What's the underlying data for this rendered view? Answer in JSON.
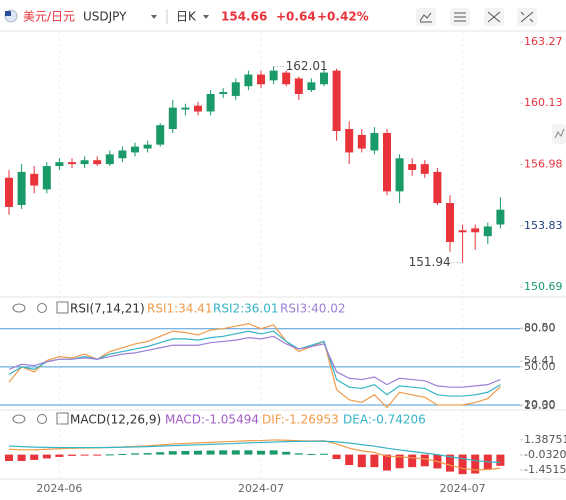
{
  "header": {
    "pair": "美元/日元",
    "symbol": "USDJPY",
    "period": "日K",
    "price": "154.66",
    "change": "+0.64",
    "change_pct": "+0.42%"
  },
  "chart_data": [
    {
      "type": "candlestick",
      "categories": [
        null,
        null,
        null,
        null,
        "2024-06",
        null,
        null,
        null,
        null,
        null,
        null,
        null,
        null,
        null,
        null,
        null,
        null,
        null,
        null,
        null,
        "2024-07",
        null,
        null,
        null,
        null,
        null,
        null,
        null,
        null,
        null,
        null,
        null,
        null,
        null,
        null,
        null,
        "2024-07",
        null,
        null,
        null
      ],
      "open": [
        156.3,
        154.9,
        156.5,
        155.7,
        156.9,
        157.1,
        157.0,
        157.2,
        157.0,
        157.3,
        157.6,
        157.8,
        158.0,
        158.8,
        159.8,
        160.0,
        159.7,
        160.6,
        160.5,
        161.0,
        161.6,
        161.3,
        161.7,
        161.4,
        160.8,
        161.1,
        161.8,
        158.8,
        158.5,
        157.7,
        158.6,
        155.6,
        157.0,
        157.0,
        156.6,
        155.0,
        153.6,
        153.7,
        153.3,
        153.9
      ],
      "high": [
        156.7,
        157.0,
        156.9,
        157.1,
        157.3,
        157.3,
        157.4,
        157.4,
        157.7,
        157.9,
        158.1,
        158.2,
        159.1,
        160.3,
        160.1,
        160.2,
        160.8,
        160.9,
        161.4,
        161.8,
        161.8,
        162.01,
        161.8,
        161.5,
        161.4,
        161.9,
        161.9,
        159.2,
        158.8,
        158.9,
        158.8,
        157.5,
        157.3,
        157.2,
        156.8,
        155.4,
        153.9,
        153.9,
        154.0,
        155.3
      ],
      "low": [
        154.4,
        154.7,
        155.5,
        155.5,
        156.7,
        156.8,
        156.8,
        156.9,
        156.9,
        157.1,
        157.4,
        157.6,
        157.9,
        158.6,
        159.5,
        159.5,
        159.5,
        160.4,
        160.3,
        160.8,
        160.9,
        161.1,
        161.0,
        160.3,
        160.7,
        161.0,
        158.2,
        157.0,
        157.6,
        157.5,
        155.4,
        155.0,
        156.4,
        156.3,
        154.9,
        152.5,
        151.94,
        152.6,
        152.9,
        153.7
      ],
      "close": [
        154.8,
        156.6,
        155.9,
        156.9,
        157.1,
        157.0,
        157.2,
        157.0,
        157.5,
        157.7,
        157.9,
        158.0,
        159.0,
        159.9,
        159.9,
        159.7,
        160.6,
        160.7,
        161.2,
        161.6,
        161.1,
        161.8,
        161.1,
        160.6,
        161.2,
        161.7,
        158.7,
        157.6,
        157.8,
        158.6,
        155.6,
        157.3,
        156.7,
        156.5,
        155.0,
        153.0,
        153.5,
        153.5,
        153.8,
        154.66
      ],
      "up_color": "#1a9a68",
      "down_color": "#e8333b",
      "ylim": [
        150.69,
        163.27
      ],
      "yticks": [
        163.27,
        160.13,
        156.98,
        153.83,
        150.69
      ],
      "ytick_colors": [
        "#e8333b",
        "#e8333b",
        "#e8333b",
        "#23407a",
        "#1a9a68"
      ],
      "annotations": [
        162.01,
        151.94
      ]
    },
    {
      "type": "line",
      "title": "RSI(7,14,21)",
      "series": [
        {
          "name": "RSI1:34.41",
          "color": "#f09a4a",
          "values": [
            38,
            50,
            46,
            55,
            58,
            57,
            60,
            56,
            62,
            65,
            68,
            70,
            74,
            78,
            77,
            75,
            79,
            80,
            82,
            84,
            80,
            83,
            70,
            62,
            66,
            70,
            32,
            24,
            22,
            28,
            18,
            30,
            28,
            26,
            20,
            20,
            20,
            22,
            25,
            34.41
          ]
        },
        {
          "name": "RSI2:36.01",
          "color": "#35b4c6",
          "values": [
            44,
            50,
            48,
            54,
            56,
            56,
            58,
            56,
            60,
            62,
            64,
            66,
            69,
            72,
            72,
            71,
            73,
            74,
            76,
            78,
            76,
            78,
            70,
            64,
            67,
            70,
            40,
            34,
            33,
            36,
            28,
            35,
            34,
            33,
            28,
            27,
            27,
            28,
            30,
            36.01
          ]
        },
        {
          "name": "RSI3:40.02",
          "color": "#9d7fd6",
          "values": [
            48,
            52,
            51,
            54,
            56,
            56,
            57,
            56,
            58,
            60,
            61,
            63,
            65,
            67,
            67,
            67,
            69,
            70,
            71,
            73,
            72,
            74,
            68,
            64,
            66,
            68,
            46,
            41,
            40,
            42,
            36,
            41,
            40,
            39,
            35,
            34,
            34,
            35,
            36,
            40.02
          ]
        }
      ],
      "ylim": [
        18,
        90
      ],
      "yticks": [
        {
          "value": 80.5,
          "label": "80.50"
        },
        {
          "value": 80,
          "label": "80.00"
        },
        54.41,
        {
          "value": 50,
          "label": "50.00"
        },
        {
          "value": 19.3,
          "label": "19.30"
        },
        {
          "value": 20,
          "label": "20.00"
        }
      ],
      "levels": [
        80,
        50,
        20
      ],
      "level_color": "#4a9bd8"
    },
    {
      "type": "macd",
      "title": "MACD(12,26,9)",
      "series": [
        {
          "name": "MACD:-1.05494",
          "color": "#a05cc8",
          "up_color": "#1a9a68",
          "down_color": "#e8333b",
          "values": [
            -0.6,
            -0.6,
            -0.5,
            -0.36,
            -0.22,
            -0.12,
            -0.08,
            -0.06,
            0.02,
            0.06,
            0.12,
            0.14,
            0.22,
            0.32,
            0.34,
            0.36,
            0.38,
            0.4,
            0.4,
            0.4,
            0.36,
            0.4,
            0.26,
            0.12,
            0.06,
            0.08,
            -0.42,
            -0.98,
            -1.18,
            -1.18,
            -1.5,
            -1.28,
            -1.18,
            -1.1,
            -1.3,
            -1.6,
            -1.84,
            -1.78,
            -1.44,
            -1.05494
          ]
        },
        {
          "name": "DIF:-1.26953",
          "color": "#f09a4a",
          "values": [
            0.5,
            0.45,
            0.45,
            0.5,
            0.55,
            0.6,
            0.62,
            0.63,
            0.68,
            0.72,
            0.78,
            0.82,
            0.9,
            1.0,
            1.05,
            1.1,
            1.15,
            1.2,
            1.25,
            1.3,
            1.32,
            1.38,
            1.35,
            1.3,
            1.28,
            1.3,
            1.0,
            0.6,
            0.35,
            0.2,
            -0.15,
            -0.2,
            -0.3,
            -0.4,
            -0.65,
            -1.0,
            -1.3,
            -1.45,
            -1.4,
            -1.26953
          ]
        },
        {
          "name": "DEA:-0.74206",
          "color": "#35b4c6",
          "values": [
            0.8,
            0.75,
            0.7,
            0.68,
            0.66,
            0.66,
            0.66,
            0.66,
            0.67,
            0.69,
            0.72,
            0.75,
            0.79,
            0.84,
            0.88,
            0.92,
            0.96,
            1.0,
            1.05,
            1.1,
            1.14,
            1.18,
            1.22,
            1.24,
            1.25,
            1.26,
            1.21,
            1.09,
            0.94,
            0.79,
            0.6,
            0.44,
            0.29,
            0.15,
            0.0,
            -0.2,
            -0.38,
            -0.56,
            -0.68,
            -0.74206
          ]
        }
      ],
      "ylim": [
        -2.2,
        2.5
      ],
      "yticks": [
        1.38751,
        -0.03203,
        -1.45158
      ]
    }
  ]
}
